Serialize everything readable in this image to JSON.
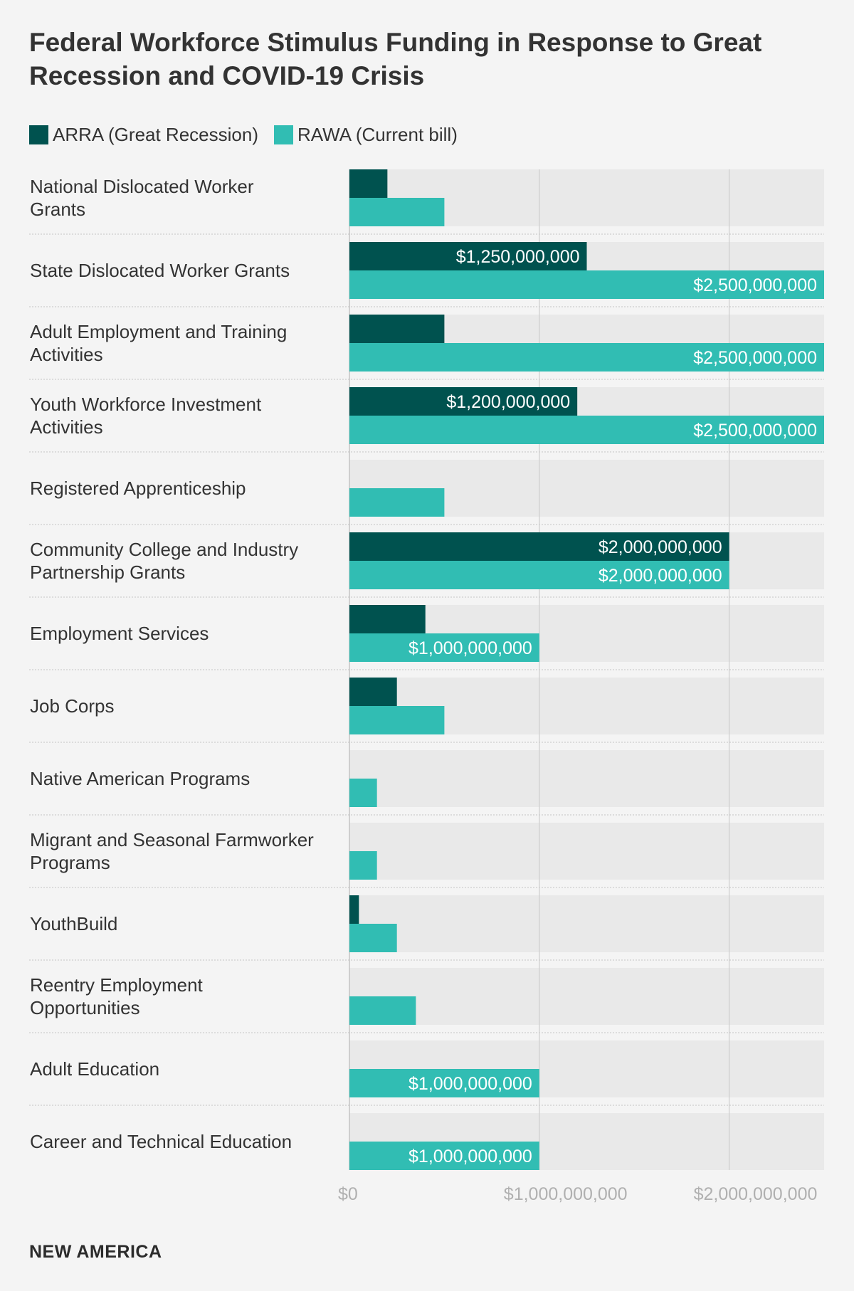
{
  "chart_data": {
    "type": "bar",
    "orientation": "horizontal",
    "title": "Federal Workforce Stimulus Funding in Response to Great Recession and COVID-19 Crisis",
    "categories": [
      [
        "National Dislocated Worker",
        "Grants"
      ],
      [
        "State Dislocated Worker Grants"
      ],
      [
        "Adult Employment and Training",
        "Activities"
      ],
      [
        "Youth Workforce Investment",
        "Activities"
      ],
      [
        "Registered Apprenticeship"
      ],
      [
        "Community College and Industry",
        "Partnership Grants"
      ],
      [
        "Employment Services"
      ],
      [
        "Job Corps"
      ],
      [
        "Native American Programs"
      ],
      [
        "Migrant and Seasonal Farmworker",
        "Programs"
      ],
      [
        "YouthBuild"
      ],
      [
        "Reentry Employment",
        "Opportunities"
      ],
      [
        "Adult Education"
      ],
      [
        "Career and Technical Education"
      ]
    ],
    "series": [
      {
        "name": "ARRA (Great Recession)",
        "color": "#00524f",
        "values": [
          200000000,
          1250000000,
          500000000,
          1200000000,
          0,
          2000000000,
          400000000,
          250000000,
          0,
          0,
          50000000,
          0,
          0,
          0
        ],
        "labels": [
          "",
          "$1,250,000,000",
          "",
          "$1,200,000,000",
          "",
          "$2,000,000,000",
          "",
          "",
          "",
          "",
          "",
          "",
          "",
          ""
        ]
      },
      {
        "name": "RAWA (Current bill)",
        "color": "#31bdb3",
        "values": [
          500000000,
          2500000000,
          2500000000,
          2500000000,
          500000000,
          2000000000,
          1000000000,
          500000000,
          145000000,
          145000000,
          250000000,
          350000000,
          1000000000,
          1000000000
        ],
        "labels": [
          "",
          "$2,500,000,000",
          "$2,500,000,000",
          "$2,500,000,000",
          "",
          "$2,000,000,000",
          "$1,000,000,000",
          "",
          "",
          "",
          "",
          "",
          "$1,000,000,000",
          "$1,000,000,000"
        ]
      }
    ],
    "xlim": [
      0,
      2500000000
    ],
    "xticks": [
      0,
      1000000000,
      2000000000
    ],
    "xtick_labels": [
      "$0",
      "$1,000,000,000",
      "$2,000,000,000"
    ],
    "grid": true,
    "legend": "top-left"
  },
  "footer": {
    "brand": "NEW AMERICA"
  }
}
